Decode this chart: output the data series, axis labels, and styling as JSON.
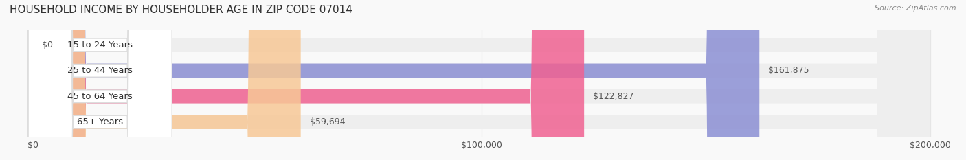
{
  "title": "HOUSEHOLD INCOME BY HOUSEHOLDER AGE IN ZIP CODE 07014",
  "source_text": "Source: ZipAtlas.com",
  "categories": [
    "15 to 24 Years",
    "25 to 44 Years",
    "45 to 64 Years",
    "65+ Years"
  ],
  "values": [
    0,
    161875,
    122827,
    59694
  ],
  "bar_colors": [
    "#5ecfca",
    "#8b8fd4",
    "#f06292",
    "#f7c896"
  ],
  "bar_bg_color": "#eeeeee",
  "value_labels": [
    "$0",
    "$161,875",
    "$122,827",
    "$59,694"
  ],
  "xlim": [
    0,
    200000
  ],
  "xtick_values": [
    0,
    100000,
    200000
  ],
  "xtick_labels": [
    "$0",
    "$100,000",
    "$200,000"
  ],
  "background_color": "#f9f9f9",
  "title_fontsize": 11,
  "bar_height": 0.55,
  "label_fontsize": 9.5,
  "value_fontsize": 9
}
